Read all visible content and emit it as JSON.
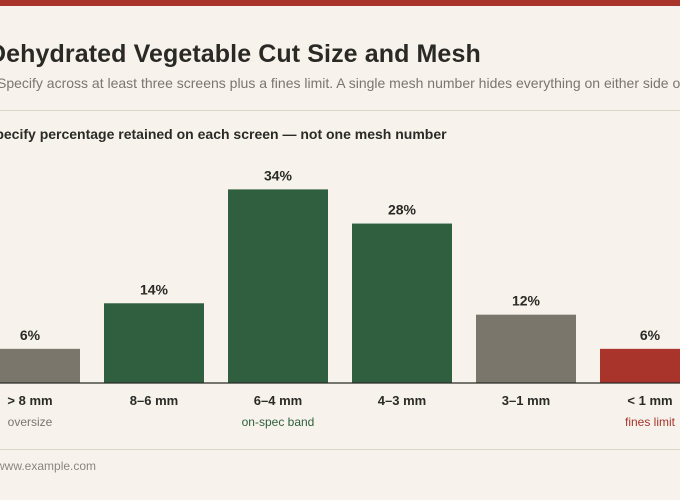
{
  "header": {
    "title": "Dehydrated Vegetable Cut Size and Mesh",
    "subtitle": "Specify across at least three screens plus a fines limit. A single mesh number hides everything on either side of it."
  },
  "chart_heading": "Specify percentage retained on each screen — not one mesh number",
  "footer": {
    "source": "www.example.com"
  },
  "colors": {
    "accent": "#a8342c",
    "on_spec": "#2f5f3f",
    "off_spec": "#7b766b",
    "fines": "#a8342c",
    "background": "#f7f3ec"
  },
  "chart_data": {
    "type": "bar",
    "categories": [
      "> 8 mm",
      "8–6 mm",
      "6–4 mm",
      "4–3 mm",
      "3–1 mm",
      "< 1 mm"
    ],
    "values": [
      6,
      14,
      34,
      28,
      12,
      6
    ],
    "value_labels": [
      "6%",
      "14%",
      "34%",
      "28%",
      "12%",
      "6%"
    ],
    "bar_colors": [
      "#7b766b",
      "#2f5f3f",
      "#2f5f3f",
      "#2f5f3f",
      "#7b766b",
      "#a8342c"
    ],
    "ylim": [
      0,
      36
    ],
    "unit": "%",
    "grid": false,
    "annotations": [
      {
        "text": "oversize",
        "category_index": 0,
        "color": "#7a766e"
      },
      {
        "text": "on-spec band",
        "category_index": 2,
        "color": "#2f5f3f"
      },
      {
        "text": "fines limit",
        "category_index": 5,
        "color": "#a8342c"
      }
    ]
  }
}
